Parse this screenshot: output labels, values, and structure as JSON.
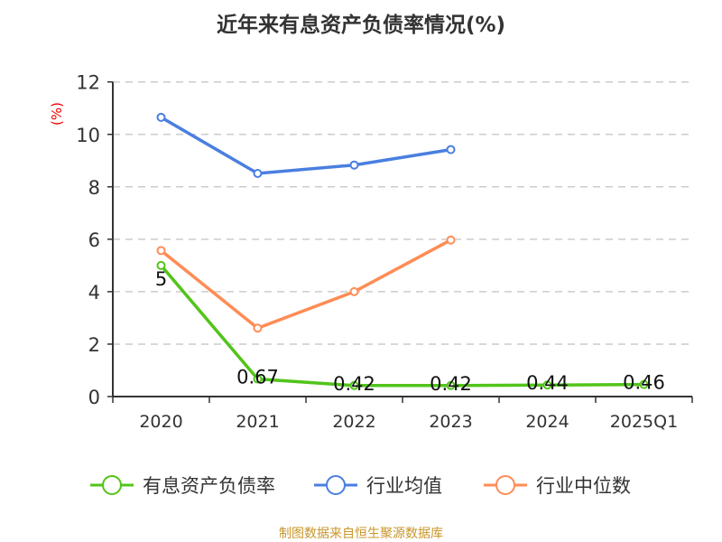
{
  "chart_data": {
    "type": "line",
    "title": "近年来有息资产负债率情况(%)",
    "ylabel": "(%)",
    "xlabel": "",
    "categories": [
      "2020",
      "2021",
      "2022",
      "2023",
      "2024",
      "2025Q1"
    ],
    "ylim": [
      0,
      12
    ],
    "yticks": [
      0,
      2,
      4,
      6,
      8,
      10,
      12
    ],
    "grid": true,
    "legend_position": "bottom",
    "series": [
      {
        "name": "有息资产负债率",
        "color": "#52c41a",
        "values": [
          5,
          0.67,
          0.42,
          0.42,
          0.44,
          0.46
        ],
        "labels": [
          "5",
          "0.67",
          "0.42",
          "0.42",
          "0.44",
          "0.46"
        ]
      },
      {
        "name": "行业均值",
        "color": "#4a7fe0",
        "values": [
          10.65,
          8.51,
          8.83,
          9.42,
          null,
          null
        ]
      },
      {
        "name": "行业中位数",
        "color": "#ff8c55",
        "values": [
          5.57,
          2.61,
          4.0,
          5.97,
          null,
          null
        ]
      }
    ]
  },
  "source": "制图数据来自恒生聚源数据库"
}
